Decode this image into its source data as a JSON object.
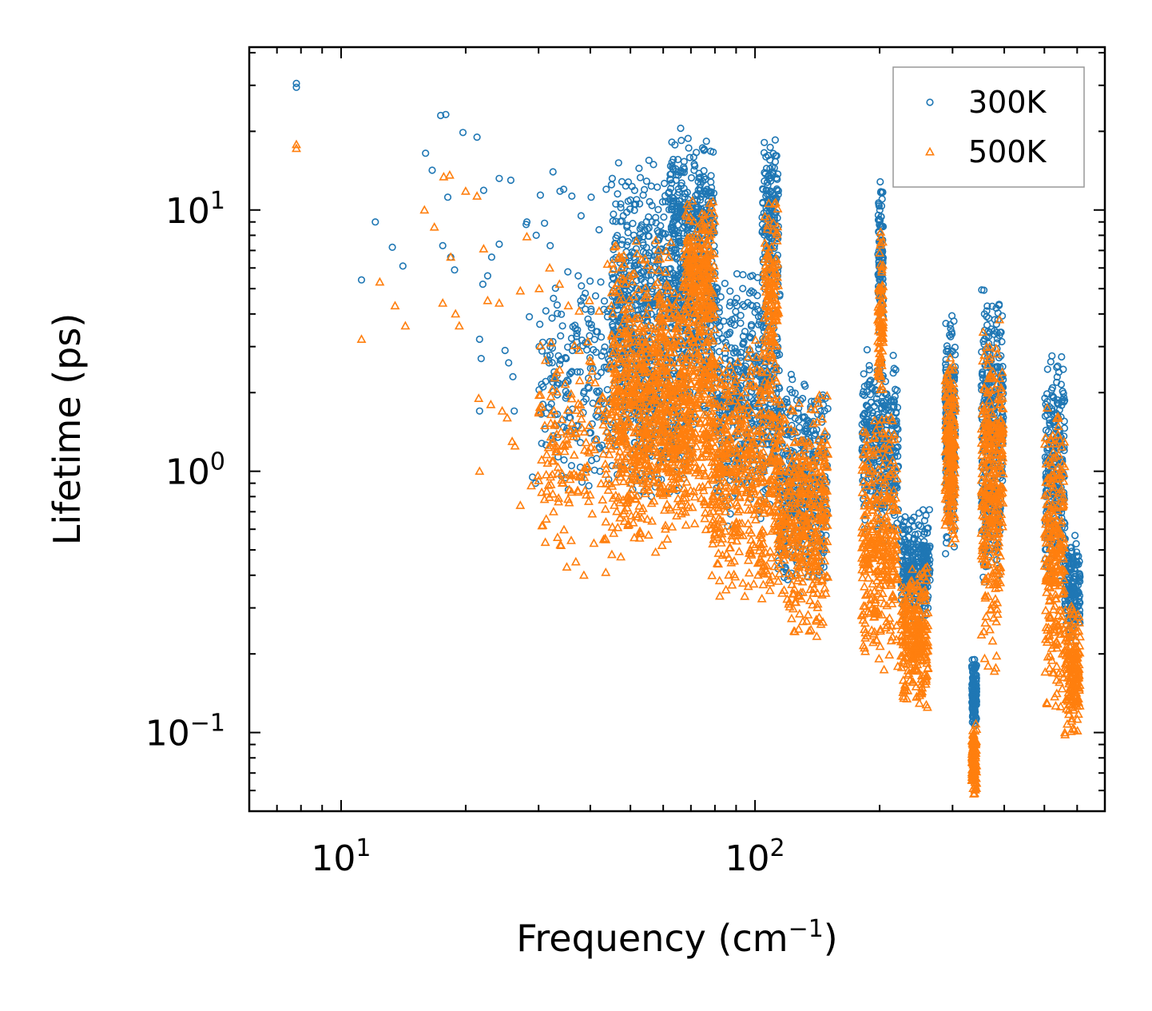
{
  "chart_data": {
    "type": "scatter",
    "xscale": "log",
    "yscale": "log",
    "xlabel": "Frequency (cm",
    "xlabel_sup": "−1",
    "xlabel_tail": ")",
    "ylabel": "Lifetime (ps)",
    "xlim": [
      6.0,
      700.0
    ],
    "ylim": [
      0.05,
      42.0
    ],
    "x_ticks": [
      {
        "base": "10",
        "exp": "1",
        "value": 10
      },
      {
        "base": "10",
        "exp": "2",
        "value": 100
      }
    ],
    "y_ticks": [
      {
        "base": "10",
        "exp": "−1",
        "value": 0.1
      },
      {
        "base": "10",
        "exp": "0",
        "value": 1
      },
      {
        "base": "10",
        "exp": "1",
        "value": 10
      }
    ],
    "legend_position": "top-right",
    "series": [
      {
        "name": "300K",
        "marker": "circle",
        "color": "#1f77b4",
        "points": [
          [
            7.8,
            30.5
          ],
          [
            7.8,
            29.5
          ],
          [
            11.2,
            5.4
          ],
          [
            12.1,
            9.0
          ],
          [
            13.3,
            7.2
          ],
          [
            14.1,
            6.1
          ],
          [
            16.0,
            16.5
          ],
          [
            16.6,
            14.2
          ],
          [
            17.4,
            23.0
          ],
          [
            17.9,
            23.2
          ],
          [
            18.1,
            11.2
          ],
          [
            17.6,
            7.3
          ],
          [
            18.4,
            6.6
          ],
          [
            18.8,
            5.9
          ],
          [
            19.7,
            19.8
          ],
          [
            21.3,
            19.0
          ],
          [
            22.1,
            11.9
          ],
          [
            22.6,
            5.6
          ],
          [
            22.0,
            5.2
          ],
          [
            21.6,
            3.2
          ],
          [
            21.8,
            2.7
          ],
          [
            21.6,
            1.7
          ],
          [
            23.1,
            6.6
          ],
          [
            24.1,
            13.2
          ],
          [
            25.7,
            13.0
          ],
          [
            24.1,
            7.4
          ],
          [
            24.9,
            2.9
          ],
          [
            25.4,
            2.6
          ],
          [
            26.0,
            2.3
          ],
          [
            26.2,
            1.7
          ],
          [
            28.1,
            9.0
          ],
          [
            28.0,
            8.8
          ],
          [
            29.6,
            8.0
          ],
          [
            30.3,
            11.4
          ],
          [
            31.0,
            8.9
          ],
          [
            32.0,
            7.3
          ],
          [
            32.5,
            14.0
          ],
          [
            33.8,
            11.8
          ],
          [
            34.5,
            12.0
          ],
          [
            36.1,
            11.3
          ],
          [
            38.0,
            9.5
          ],
          [
            40.2,
            11.2
          ],
          [
            42.0,
            8.4
          ],
          [
            43.7,
            12.0
          ],
          [
            45.0,
            12.5
          ],
          [
            47.4,
            10.2
          ],
          [
            49.0,
            9.8
          ],
          [
            35.3,
            5.8
          ],
          [
            37.4,
            5.6
          ],
          [
            38.9,
            4.8
          ],
          [
            42.4,
            5.3
          ],
          [
            44.0,
            3.9
          ],
          [
            46.3,
            4.5
          ],
          [
            29.0,
            0.95
          ],
          [
            29.5,
            0.9
          ],
          [
            31.1,
            1.45
          ],
          [
            33.4,
            1.35
          ],
          [
            35.4,
            0.85
          ],
          [
            38.1,
            0.95
          ],
          [
            40.3,
            1.1
          ],
          [
            42.2,
            1.0
          ],
          [
            44.3,
            0.93
          ],
          [
            28.5,
            3.9
          ],
          [
            30.1,
            3.0
          ],
          [
            31.8,
            2.6
          ],
          [
            33.9,
            3.3
          ],
          [
            36.2,
            2.9
          ],
          [
            37.8,
            2.4
          ],
          [
            39.5,
            2.1
          ],
          [
            41.7,
            2.0
          ]
        ],
        "clusters": [
          {
            "fmin": 45,
            "fmax": 80,
            "lmin": 1.2,
            "lmax": 16.0,
            "n": 900
          },
          {
            "fmin": 62,
            "fmax": 80,
            "lmin": 5.0,
            "lmax": 21.0,
            "n": 220
          },
          {
            "fmin": 30,
            "fmax": 50,
            "lmin": 0.8,
            "lmax": 6.0,
            "n": 230
          },
          {
            "fmin": 50,
            "fmax": 70,
            "lmin": 0.7,
            "lmax": 3.0,
            "n": 160
          },
          {
            "fmin": 80,
            "fmax": 115,
            "lmin": 0.6,
            "lmax": 6.5,
            "n": 500
          },
          {
            "fmin": 104,
            "fmax": 114,
            "lmin": 4.5,
            "lmax": 20.0,
            "n": 150
          },
          {
            "fmin": 113,
            "fmax": 150,
            "lmin": 0.33,
            "lmax": 2.5,
            "n": 400
          },
          {
            "fmin": 181,
            "fmax": 222,
            "lmin": 0.5,
            "lmax": 3.0,
            "n": 330
          },
          {
            "fmin": 198,
            "fmax": 204,
            "lmin": 3.0,
            "lmax": 14.0,
            "n": 100
          },
          {
            "fmin": 225,
            "fmax": 265,
            "lmin": 0.27,
            "lmax": 0.72,
            "n": 260
          },
          {
            "fmin": 288,
            "fmax": 305,
            "lmin": 0.45,
            "lmax": 4.4,
            "n": 240
          },
          {
            "fmin": 334,
            "fmax": 343,
            "lmin": 0.1,
            "lmax": 0.2,
            "n": 130
          },
          {
            "fmin": 352,
            "fmax": 392,
            "lmin": 0.35,
            "lmax": 5.5,
            "n": 300
          },
          {
            "fmin": 392,
            "fmax": 398,
            "lmin": 0.8,
            "lmax": 4.4,
            "n": 40
          },
          {
            "fmin": 500,
            "fmax": 560,
            "lmin": 0.35,
            "lmax": 3.0,
            "n": 260
          },
          {
            "fmin": 560,
            "fmax": 610,
            "lmin": 0.22,
            "lmax": 0.6,
            "n": 160
          }
        ]
      },
      {
        "name": "500K",
        "marker": "triangle",
        "color": "#ff7f0e",
        "points": [
          [
            7.8,
            17.8
          ],
          [
            7.8,
            17.2
          ],
          [
            11.2,
            3.2
          ],
          [
            12.4,
            5.3
          ],
          [
            13.5,
            4.3
          ],
          [
            14.3,
            3.6
          ],
          [
            15.9,
            10.0
          ],
          [
            16.8,
            8.6
          ],
          [
            17.6,
            4.4
          ],
          [
            18.3,
            13.6
          ],
          [
            17.7,
            13.4
          ],
          [
            18.4,
            6.6
          ],
          [
            19.3,
            3.6
          ],
          [
            18.9,
            4.0
          ],
          [
            20.0,
            11.8
          ],
          [
            21.3,
            11.3
          ],
          [
            22.1,
            7.1
          ],
          [
            22.6,
            4.5
          ],
          [
            21.5,
            1.9
          ],
          [
            21.6,
            1.0
          ],
          [
            23.0,
            1.8
          ],
          [
            24.5,
            1.7
          ],
          [
            24.1,
            4.4
          ],
          [
            25.2,
            1.6
          ],
          [
            25.9,
            1.3
          ],
          [
            26.3,
            1.25
          ],
          [
            27.1,
            0.74
          ],
          [
            28.8,
            0.88
          ],
          [
            29.9,
            0.96
          ],
          [
            31.0,
            0.78
          ],
          [
            32.6,
            0.7
          ],
          [
            34.0,
            0.52
          ],
          [
            35.1,
            0.43
          ],
          [
            36.9,
            0.45
          ],
          [
            38.6,
            0.4
          ],
          [
            40.8,
            0.53
          ],
          [
            43.6,
            0.41
          ],
          [
            45.1,
            0.48
          ],
          [
            47.4,
            0.47
          ],
          [
            49.3,
            0.62
          ],
          [
            52.8,
            0.58
          ],
          [
            55.3,
            0.57
          ],
          [
            57.5,
            0.49
          ],
          [
            59.6,
            0.52
          ],
          [
            61.4,
            0.55
          ],
          [
            28.1,
            7.9
          ],
          [
            27.1,
            4.9
          ],
          [
            30.1,
            5.0
          ],
          [
            31.9,
            6.0
          ],
          [
            33.7,
            5.2
          ],
          [
            35.4,
            4.3
          ],
          [
            37.6,
            4.1
          ],
          [
            39.8,
            4.5
          ],
          [
            42.0,
            4.1
          ],
          [
            44.0,
            6.2
          ],
          [
            46.1,
            7.3
          ],
          [
            48.2,
            6.7
          ]
        ],
        "clusters": [
          {
            "fmin": 45,
            "fmax": 80,
            "lmin": 0.5,
            "lmax": 9.0,
            "n": 950
          },
          {
            "fmin": 68,
            "fmax": 80,
            "lmin": 3.0,
            "lmax": 11.5,
            "n": 200
          },
          {
            "fmin": 30,
            "fmax": 50,
            "lmin": 0.45,
            "lmax": 3.5,
            "n": 200
          },
          {
            "fmin": 50,
            "fmax": 70,
            "lmin": 0.6,
            "lmax": 2.5,
            "n": 160
          },
          {
            "fmin": 78,
            "fmax": 115,
            "lmin": 0.3,
            "lmax": 3.5,
            "n": 520
          },
          {
            "fmin": 105,
            "fmax": 114,
            "lmin": 2.0,
            "lmax": 12.0,
            "n": 140
          },
          {
            "fmin": 113,
            "fmax": 150,
            "lmin": 0.22,
            "lmax": 2.0,
            "n": 420
          },
          {
            "fmin": 181,
            "fmax": 222,
            "lmin": 0.16,
            "lmax": 1.8,
            "n": 340
          },
          {
            "fmin": 198,
            "fmax": 204,
            "lmin": 1.8,
            "lmax": 8.5,
            "n": 90
          },
          {
            "fmin": 225,
            "fmax": 262,
            "lmin": 0.12,
            "lmax": 0.45,
            "n": 270
          },
          {
            "fmin": 288,
            "fmax": 305,
            "lmin": 0.5,
            "lmax": 2.8,
            "n": 220
          },
          {
            "fmin": 334,
            "fmax": 343,
            "lmin": 0.055,
            "lmax": 0.11,
            "n": 130
          },
          {
            "fmin": 352,
            "fmax": 392,
            "lmin": 0.17,
            "lmax": 4.0,
            "n": 300
          },
          {
            "fmin": 392,
            "fmax": 398,
            "lmin": 0.55,
            "lmax": 3.0,
            "n": 40
          },
          {
            "fmin": 500,
            "fmax": 560,
            "lmin": 0.12,
            "lmax": 2.0,
            "n": 260
          },
          {
            "fmin": 560,
            "fmax": 610,
            "lmin": 0.095,
            "lmax": 0.35,
            "n": 170
          }
        ]
      }
    ]
  }
}
